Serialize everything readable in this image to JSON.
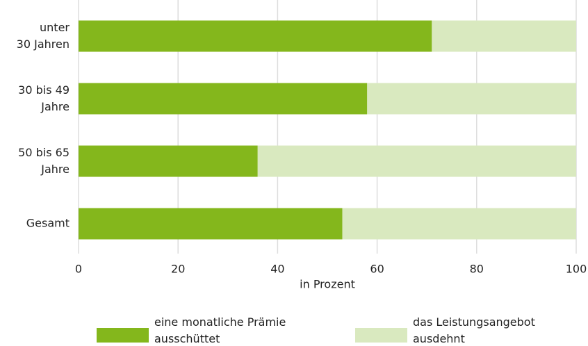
{
  "chart_data": {
    "type": "bar",
    "orientation": "horizontal",
    "stacked": true,
    "categories": [
      "unter\n30 Jahren",
      "30 bis 49\nJahre",
      "50 bis 65\nJahre",
      "Gesamt"
    ],
    "series": [
      {
        "name": "eine monatliche Prämie\nausschüttet",
        "color": "#84b71c",
        "values": [
          71,
          58,
          36,
          53
        ]
      },
      {
        "name": "das Leistungsangebot\nausdehnt",
        "color": "#d9e9bf",
        "values": [
          29,
          42,
          64,
          47
        ]
      }
    ],
    "xlabel": "in Prozent",
    "xlim": [
      0,
      100
    ],
    "xticks": [
      0,
      20,
      40,
      60,
      80,
      100
    ],
    "grid": true
  }
}
